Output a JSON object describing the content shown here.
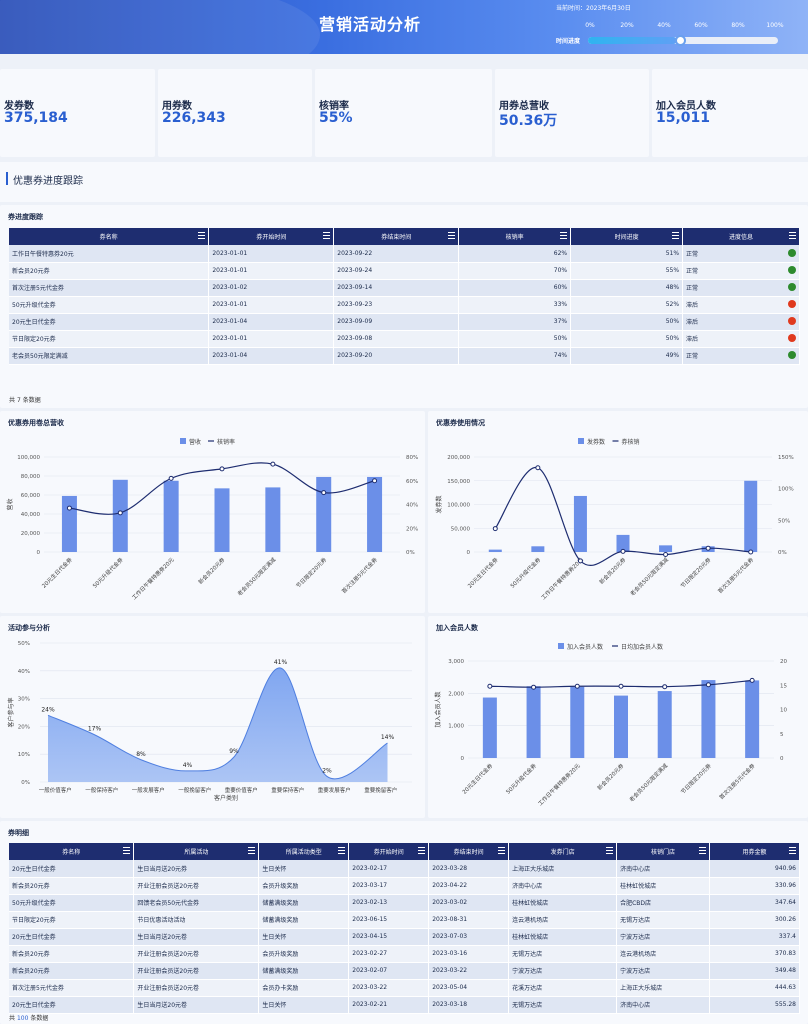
{
  "header": {
    "title": "营销活动分析",
    "time_label": "当前时间：2023年6月30日",
    "progress_label": "时间进度",
    "progress_ticks": [
      "0%",
      "20%",
      "40%",
      "60%",
      "80%",
      "100%"
    ],
    "progress_value": 0.5
  },
  "kpis": [
    {
      "label": "发券数",
      "value": "375,184"
    },
    {
      "label": "用券数",
      "value": "226,343"
    },
    {
      "label": "核销率",
      "value": "55%"
    },
    {
      "label": "用券总营收",
      "value": "50.36万"
    },
    {
      "label": "加入会员人数",
      "value": "15,011"
    }
  ],
  "section": {
    "title": "优惠券进度跟踪"
  },
  "progress_table": {
    "title": "券进度跟踪",
    "columns": [
      "券名称",
      "券开始时间",
      "券结束时间",
      "核销率",
      "时间进度",
      "进度信息"
    ],
    "rows": [
      {
        "name": "工作日午餐特惠券20元",
        "start": "2023-01-01",
        "end": "2023-09-22",
        "rate": "62%",
        "time": "51%",
        "status": "正常",
        "color": "#2e8b2e"
      },
      {
        "name": "新会员20元券",
        "start": "2023-01-01",
        "end": "2023-09-24",
        "rate": "70%",
        "time": "55%",
        "status": "正常",
        "color": "#2e8b2e"
      },
      {
        "name": "首次注册5元代金券",
        "start": "2023-01-02",
        "end": "2023-09-14",
        "rate": "60%",
        "time": "48%",
        "status": "正常",
        "color": "#2e8b2e"
      },
      {
        "name": "50元升级代金券",
        "start": "2023-01-01",
        "end": "2023-09-23",
        "rate": "33%",
        "time": "52%",
        "status": "滞后",
        "color": "#e03a1e"
      },
      {
        "name": "20元生日代金券",
        "start": "2023-01-04",
        "end": "2023-09-09",
        "rate": "37%",
        "time": "50%",
        "status": "滞后",
        "color": "#e03a1e"
      },
      {
        "name": "节日限定20元券",
        "start": "2023-01-01",
        "end": "2023-09-08",
        "rate": "50%",
        "time": "50%",
        "status": "滞后",
        "color": "#e03a1e"
      },
      {
        "name": "老会员50元限定满减",
        "start": "2023-01-04",
        "end": "2023-09-20",
        "rate": "74%",
        "time": "49%",
        "status": "正常",
        "color": "#2e8b2e"
      }
    ],
    "footer_prefix": "共",
    "footer_count": "7",
    "footer_suffix": "条数据"
  },
  "charts": {
    "revenue": {
      "title": "优惠券用卷总营收",
      "legend": [
        "营收",
        "核销率"
      ],
      "ylabel": "营收"
    },
    "usage": {
      "title": "优惠券使用情况",
      "legend": [
        "发券数",
        "券核销"
      ],
      "ylabel": "发券数"
    },
    "activity": {
      "title": "活动参与分析",
      "xlabel": "客户类别",
      "ylabel": "客户参与率"
    },
    "members": {
      "title": "加入会员人数",
      "legend": [
        "加入会员人数",
        "日均加会员人数"
      ],
      "ylabel": "加入会员人数"
    }
  },
  "chart_data": [
    {
      "type": "bar",
      "title": "优惠券用卷总营收",
      "ylabel": "营收",
      "categories": [
        "20元生日代金券",
        "50元升级代金券",
        "工作日午餐特惠券20元",
        "新会员20元券",
        "老会员50元限定满减",
        "节日限定20元券",
        "首次注册5元代金券"
      ],
      "series": [
        {
          "name": "营收",
          "type": "bar",
          "values": [
            59000,
            76000,
            75000,
            67000,
            68000,
            79000,
            79000
          ]
        },
        {
          "name": "核销率",
          "type": "line",
          "axis": "right",
          "values": [
            37,
            33,
            62,
            70,
            74,
            50,
            60
          ]
        }
      ],
      "ylim": [
        0,
        100000
      ],
      "yticks": [
        0,
        20000,
        40000,
        60000,
        80000,
        100000
      ],
      "y2lim": [
        0,
        80
      ],
      "y2ticks": [
        "0%",
        "20%",
        "40%",
        "60%",
        "80%"
      ]
    },
    {
      "type": "bar",
      "title": "优惠券使用情况",
      "ylabel": "发券数",
      "categories": [
        "20元生日代金券",
        "50元升级代金券",
        "工作日午餐特惠券20元",
        "新会员20元券",
        "老会员50元限定满减",
        "节日限定20元券",
        "首次注册5元代金券"
      ],
      "series": [
        {
          "name": "发券数",
          "type": "bar",
          "values": [
            5000,
            12000,
            118000,
            36000,
            14000,
            12000,
            150000
          ]
        },
        {
          "name": "券核销",
          "type": "line",
          "axis": "right",
          "values": [
            37,
            133,
            -14,
            1,
            -4,
            6,
            0
          ]
        }
      ],
      "ylim": [
        0,
        200000
      ],
      "yticks": [
        0,
        50000,
        100000,
        150000,
        200000
      ],
      "y2lim": [
        0,
        150
      ],
      "y2ticks": [
        "0%",
        "50%",
        "100%",
        "150%"
      ]
    },
    {
      "type": "area",
      "title": "活动参与分析",
      "xlabel": "客户类别",
      "ylabel": "客户参与率",
      "categories": [
        "一般价值客户",
        "一般保持客户",
        "一般发展客户",
        "一般挽留客户",
        "重要价值客户",
        "重要保持客户",
        "重要发展客户",
        "重要挽留客户"
      ],
      "values": [
        24,
        17,
        8,
        4,
        9,
        41,
        2,
        14
      ],
      "labels": [
        "24%",
        "17%",
        "8%",
        "4%",
        "9%",
        "41%",
        "2%",
        "14%"
      ],
      "ylim": [
        0,
        50
      ],
      "yticks": [
        "0%",
        "10%",
        "20%",
        "30%",
        "40%",
        "50%"
      ]
    },
    {
      "type": "bar",
      "title": "加入会员人数",
      "ylabel": "加入会员人数",
      "categories": [
        "20元生日代金券",
        "50元升级代金券",
        "工作日午餐特惠券20元",
        "新会员20元券",
        "老会员50元限定满减",
        "节日限定20元券",
        "首次注册5元代金券"
      ],
      "series": [
        {
          "name": "加入会员人数",
          "type": "bar",
          "values": [
            1870,
            2220,
            2200,
            1930,
            2070,
            2410,
            2400
          ]
        },
        {
          "name": "日均加会员人数",
          "type": "line",
          "axis": "right",
          "values": [
            14.8,
            14.6,
            14.8,
            14.8,
            14.7,
            15.1,
            16
          ]
        }
      ],
      "ylim": [
        0,
        3000
      ],
      "yticks": [
        "0",
        "1,000",
        "2,000",
        "3,000"
      ],
      "y2lim": [
        0,
        20
      ],
      "y2ticks": [
        "0",
        "5",
        "10",
        "15",
        "20"
      ]
    }
  ],
  "detail_table": {
    "title": "券明细",
    "columns": [
      "券名称",
      "所属活动",
      "所属活动类型",
      "券开始时间",
      "券结束时间",
      "发券门店",
      "核销门店",
      "用券金额"
    ],
    "rows": [
      [
        "20元生日代金券",
        "生日当月送20元券",
        "生日关怀",
        "2023-02-17",
        "2023-03-28",
        "上海正大乐城店",
        "济南中心店",
        "940.96"
      ],
      [
        "新会员20元券",
        "开业注册会员送20元卷",
        "会员升级奖励",
        "2023-03-17",
        "2023-04-22",
        "济南中心店",
        "桂林虹悦城店",
        "330.96"
      ],
      [
        "50元升级代金券",
        "回馈老会员50元代金券",
        "储蓄满级奖励",
        "2023-02-13",
        "2023-03-02",
        "桂林虹悦城店",
        "合肥CBD店",
        "347.64"
      ],
      [
        "节日限定20元券",
        "节日优惠活动活动",
        "储蓄满级奖励",
        "2023-06-15",
        "2023-08-31",
        "连云港机场店",
        "无锡万达店",
        "300.26"
      ],
      [
        "20元生日代金券",
        "生日当月送20元卷",
        "生日关怀",
        "2023-04-15",
        "2023-07-03",
        "桂林虹悦城店",
        "宁波万达店",
        "337.4"
      ],
      [
        "新会员20元券",
        "开业注册会员送20元卷",
        "会员升级奖励",
        "2023-02-27",
        "2023-03-16",
        "无锡万达店",
        "连云港机场店",
        "370.83"
      ],
      [
        "新会员20元券",
        "开业注册会员送20元卷",
        "储蓄满级奖励",
        "2023-02-07",
        "2023-03-22",
        "宁波万达店",
        "宁波万达店",
        "349.48"
      ],
      [
        "首次注册5元代金券",
        "开业注册会员送20元卷",
        "会员办卡奖励",
        "2023-03-22",
        "2023-05-04",
        "花溪万达店",
        "上海正大乐城店",
        "444.63"
      ],
      [
        "20元生日代金券",
        "生日当月送20元卷",
        "生日关怀",
        "2023-02-21",
        "2023-03-18",
        "无锡万达店",
        "济南中心店",
        "555.28"
      ]
    ],
    "footer_prefix": "共",
    "footer_count": "100",
    "footer_suffix": "条数据"
  }
}
